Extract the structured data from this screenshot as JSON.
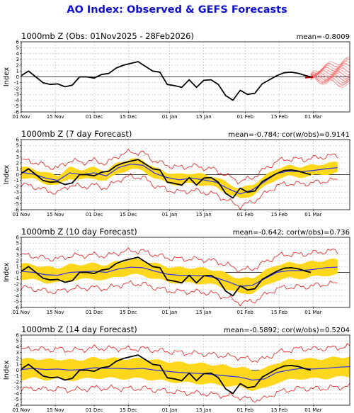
{
  "title": "AO Index: Observed & GEFS Forecasts",
  "colors": {
    "title": "#1010d0",
    "observed": "#000000",
    "ensemble_mean": "#3a3ad8",
    "spread_band": "#ffd81e",
    "extremes": "#e81818",
    "members": "#f07070",
    "grid": "#b8b8b8"
  },
  "chart_data": [
    {
      "type": "line",
      "title": "1000mb Z (Obs: 01Nov2025 - 28Feb2026)",
      "stat": "mean=-0.8009",
      "ylabel": "Index",
      "xticks": [
        "01 Nov",
        "15 Nov",
        "01 Dec",
        "15 Dec",
        "01 Jan",
        "15 Jan",
        "01 Feb",
        "15 Feb",
        "01 Mar"
      ],
      "yticks": [
        -6,
        -5,
        -4,
        -3,
        -2,
        -1,
        0,
        1,
        2,
        3,
        4,
        5,
        6
      ],
      "ylim": [
        -6,
        6
      ],
      "x_range_days": [
        0,
        135
      ],
      "grid": true,
      "observed_x": [
        0,
        3,
        6,
        9,
        12,
        15,
        18,
        21,
        24,
        27,
        30,
        33,
        36,
        39,
        42,
        45,
        48,
        51,
        54,
        57,
        60,
        63,
        66,
        69,
        72,
        75,
        78,
        81,
        84,
        87,
        90,
        93,
        96,
        99,
        102,
        105,
        108,
        111,
        114,
        117,
        119
      ],
      "observed_y": [
        0.2,
        1.0,
        0.0,
        -1.0,
        -1.3,
        -1.2,
        -1.7,
        -1.4,
        0.0,
        0.0,
        -0.2,
        0.4,
        0.6,
        1.5,
        2.0,
        2.3,
        2.6,
        1.8,
        1.0,
        0.8,
        -1.3,
        -1.5,
        -1.8,
        -0.5,
        -1.8,
        -0.6,
        -0.5,
        -1.3,
        -3.2,
        -4.0,
        -2.3,
        -3.0,
        -2.8,
        -1.2,
        -0.5,
        0.2,
        0.7,
        0.8,
        0.6,
        0.2,
        0.0
      ],
      "forecast_members": {
        "start_day": 119,
        "end_day": 135,
        "range_low": -1.5,
        "range_high": 3.0,
        "count": 20
      }
    },
    {
      "type": "line",
      "title": "1000mb Z (7 day Forecast)",
      "stat": "mean=-0.784; cor(w/obs)=0.9141",
      "ylabel": "Index",
      "xticks": [
        "01 Nov",
        "15 Nov",
        "01 Dec",
        "15 Dec",
        "01 Jan",
        "15 Jan",
        "01 Feb",
        "15 Feb",
        "01 Mar"
      ],
      "yticks": [
        -6,
        -5,
        -4,
        -3,
        -2,
        -1,
        0,
        1,
        2,
        3,
        4,
        5,
        6
      ],
      "ylim": [
        -6,
        6
      ],
      "x_range_days": [
        0,
        135
      ],
      "grid": true,
      "observed_x": [
        0,
        3,
        6,
        9,
        12,
        15,
        18,
        21,
        24,
        27,
        30,
        33,
        36,
        39,
        42,
        45,
        48,
        51,
        54,
        57,
        60,
        63,
        66,
        69,
        72,
        75,
        78,
        81,
        84,
        87,
        90,
        93,
        96,
        99,
        102,
        105,
        108,
        111,
        114,
        117,
        119
      ],
      "observed_y": [
        0.2,
        1.0,
        0.0,
        -1.0,
        -1.3,
        -1.2,
        -1.7,
        -1.4,
        0.0,
        0.0,
        -0.2,
        0.4,
        0.6,
        1.5,
        2.0,
        2.3,
        2.6,
        1.8,
        1.0,
        0.8,
        -1.3,
        -1.5,
        -1.8,
        -0.5,
        -1.8,
        -0.6,
        -0.5,
        -1.3,
        -3.2,
        -4.0,
        -2.3,
        -3.0,
        -2.8,
        -1.2,
        -0.5,
        0.2,
        0.7,
        0.8,
        0.6,
        0.2,
        0.0
      ],
      "mean_x": [
        0,
        5,
        10,
        15,
        20,
        25,
        30,
        35,
        40,
        45,
        50,
        55,
        60,
        65,
        70,
        75,
        80,
        85,
        90,
        95,
        100,
        105,
        110,
        115,
        120,
        125,
        130
      ],
      "mean_y": [
        0.4,
        0.1,
        -0.6,
        -1.0,
        0.3,
        0.0,
        0.3,
        -0.2,
        1.2,
        1.8,
        1.6,
        0.2,
        -0.5,
        -0.9,
        -0.6,
        -0.9,
        -1.3,
        -2.4,
        -3.3,
        -2.6,
        -1.2,
        0.2,
        0.6,
        0.5,
        0.7,
        1.0,
        1.2
      ],
      "spread_half_width": 0.9,
      "extreme_half_width": 2.1
    },
    {
      "type": "line",
      "title": "1000mb Z (10 day Forecast)",
      "stat": "mean=-0.642; cor(w/obs)=0.736",
      "ylabel": "Index",
      "xticks": [
        "01 Nov",
        "15 Nov",
        "01 Dec",
        "15 Dec",
        "01 Jan",
        "15 Jan",
        "01 Feb",
        "15 Feb",
        "01 Mar"
      ],
      "yticks": [
        -6,
        -5,
        -4,
        -3,
        -2,
        -1,
        0,
        1,
        2,
        3,
        4,
        5,
        6
      ],
      "ylim": [
        -6,
        6
      ],
      "x_range_days": [
        0,
        135
      ],
      "grid": true,
      "observed_x": [
        0,
        3,
        6,
        9,
        12,
        15,
        18,
        21,
        24,
        27,
        30,
        33,
        36,
        39,
        42,
        45,
        48,
        51,
        54,
        57,
        60,
        63,
        66,
        69,
        72,
        75,
        78,
        81,
        84,
        87,
        90,
        93,
        96,
        99,
        102,
        105,
        108,
        111,
        114,
        117,
        119
      ],
      "observed_y": [
        0.2,
        1.0,
        0.0,
        -1.0,
        -1.3,
        -1.2,
        -1.7,
        -1.4,
        0.0,
        0.0,
        -0.2,
        0.4,
        0.6,
        1.5,
        2.0,
        2.3,
        2.6,
        1.8,
        1.0,
        0.8,
        -1.3,
        -1.5,
        -1.8,
        -0.5,
        -1.8,
        -0.6,
        -0.5,
        -1.3,
        -3.2,
        -4.0,
        -2.3,
        -3.0,
        -2.8,
        -1.2,
        -0.5,
        0.2,
        0.7,
        0.8,
        0.6,
        0.2,
        0.0
      ],
      "mean_x": [
        0,
        5,
        10,
        15,
        20,
        25,
        30,
        35,
        40,
        45,
        50,
        55,
        60,
        65,
        70,
        75,
        80,
        85,
        90,
        95,
        100,
        105,
        110,
        115,
        120,
        125,
        130
      ],
      "mean_y": [
        0.2,
        0.0,
        -0.4,
        -0.5,
        0.0,
        0.1,
        0.2,
        0.0,
        0.6,
        0.9,
        0.8,
        0.2,
        -0.3,
        -0.5,
        -0.5,
        -0.6,
        -0.9,
        -1.6,
        -2.4,
        -2.2,
        -1.1,
        0.0,
        0.3,
        0.3,
        0.5,
        0.8,
        0.9
      ],
      "spread_half_width": 1.3,
      "extreme_half_width": 2.8
    },
    {
      "type": "line",
      "title": "1000mb Z (14 day Forecast)",
      "stat": "mean=-0.5892; cor(w/obs)=0.5204",
      "ylabel": "Index",
      "xticks": [
        "01 Nov",
        "15 Nov",
        "01 Dec",
        "15 Dec",
        "01 Jan",
        "15 Jan",
        "01 Feb",
        "15 Feb",
        "01 Mar"
      ],
      "yticks": [
        -6,
        -5,
        -4,
        -3,
        -2,
        -1,
        0,
        1,
        2,
        3,
        4,
        5,
        6
      ],
      "ylim": [
        -6,
        6
      ],
      "x_range_days": [
        0,
        135
      ],
      "grid": true,
      "observed_x": [
        0,
        3,
        6,
        9,
        12,
        15,
        18,
        21,
        24,
        27,
        30,
        33,
        36,
        39,
        42,
        45,
        48,
        51,
        54,
        57,
        60,
        63,
        66,
        69,
        72,
        75,
        78,
        81,
        84,
        87,
        90,
        93,
        96,
        99,
        102,
        105,
        108,
        111,
        114,
        117,
        119
      ],
      "observed_y": [
        0.2,
        1.0,
        0.0,
        -1.0,
        -1.3,
        -1.2,
        -1.7,
        -1.4,
        0.0,
        0.0,
        -0.2,
        0.4,
        0.6,
        1.5,
        2.0,
        2.3,
        2.6,
        1.8,
        1.0,
        0.8,
        -1.3,
        -1.5,
        -1.8,
        -0.5,
        -1.8,
        -0.6,
        -0.5,
        -1.3,
        -3.2,
        -4.0,
        -2.3,
        -3.0,
        -2.8,
        -1.2,
        -0.5,
        0.2,
        0.7,
        0.8,
        0.6,
        0.2,
        0.0
      ],
      "mean_x": [
        0,
        5,
        10,
        15,
        20,
        25,
        30,
        35,
        40,
        45,
        50,
        55,
        60,
        65,
        70,
        75,
        80,
        85,
        90,
        95,
        100,
        105,
        110,
        115,
        120,
        125,
        130,
        135
      ],
      "mean_y": [
        0.1,
        0.3,
        0.1,
        0.2,
        0.0,
        0.1,
        0.4,
        0.3,
        0.3,
        0.2,
        0.3,
        0.0,
        -0.2,
        -0.4,
        -0.5,
        -0.6,
        -0.8,
        -1.0,
        -1.2,
        -1.7,
        -1.5,
        -0.4,
        0.0,
        0.3,
        0.2,
        0.3,
        0.5,
        0.6
      ],
      "spread_half_width": 1.7,
      "extreme_half_width": 3.4
    }
  ]
}
